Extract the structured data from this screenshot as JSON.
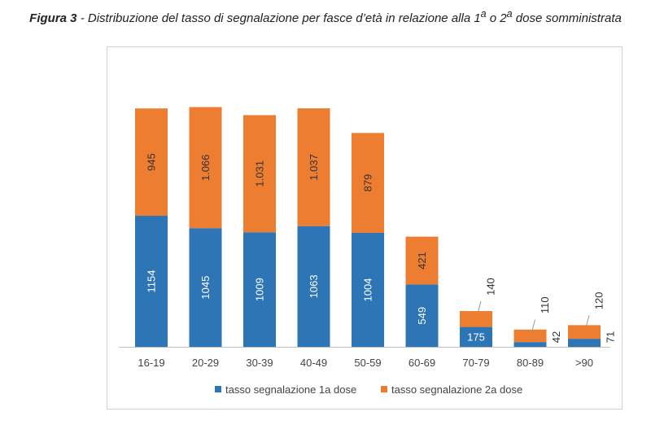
{
  "caption": {
    "figure": "Figura 3",
    "separator": " - ",
    "text_before_sup1": "Distribuzione del tasso di segnalazione per fasce d’età in relazione alla 1",
    "sup1": "a",
    "text_middle": " o 2",
    "sup2": "a",
    "text_after": " dose somministrata"
  },
  "colors": {
    "series1": "#2E75B6",
    "series2": "#ED7D31",
    "axis": "#bfbfbf",
    "label_light": "#ffffff",
    "label_dark": "#333333"
  },
  "chart_data": {
    "type": "bar",
    "stacked": true,
    "categories": [
      "16-19",
      "20-29",
      "30-39",
      "40-49",
      "50-59",
      "60-69",
      "70-79",
      "80-89",
      ">90"
    ],
    "series": [
      {
        "name": "tasso segnalazione 1a dose",
        "values": [
          1154,
          1045,
          1009,
          1063,
          1004,
          549,
          175,
          42,
          71
        ],
        "labels": [
          "1154",
          "1045",
          "1009",
          "1063",
          "1004",
          "549",
          "175",
          "42",
          "71"
        ]
      },
      {
        "name": "tasso segnalazione 2a dose",
        "values": [
          945,
          1066,
          1031,
          1037,
          879,
          421,
          140,
          110,
          120
        ],
        "labels": [
          "945",
          "1.066",
          "1.031",
          "1.037",
          "879",
          "421",
          "140",
          "110",
          "120"
        ]
      }
    ],
    "ylim": [
      0,
      2200
    ],
    "grid": false,
    "legend_position": "bottom"
  }
}
